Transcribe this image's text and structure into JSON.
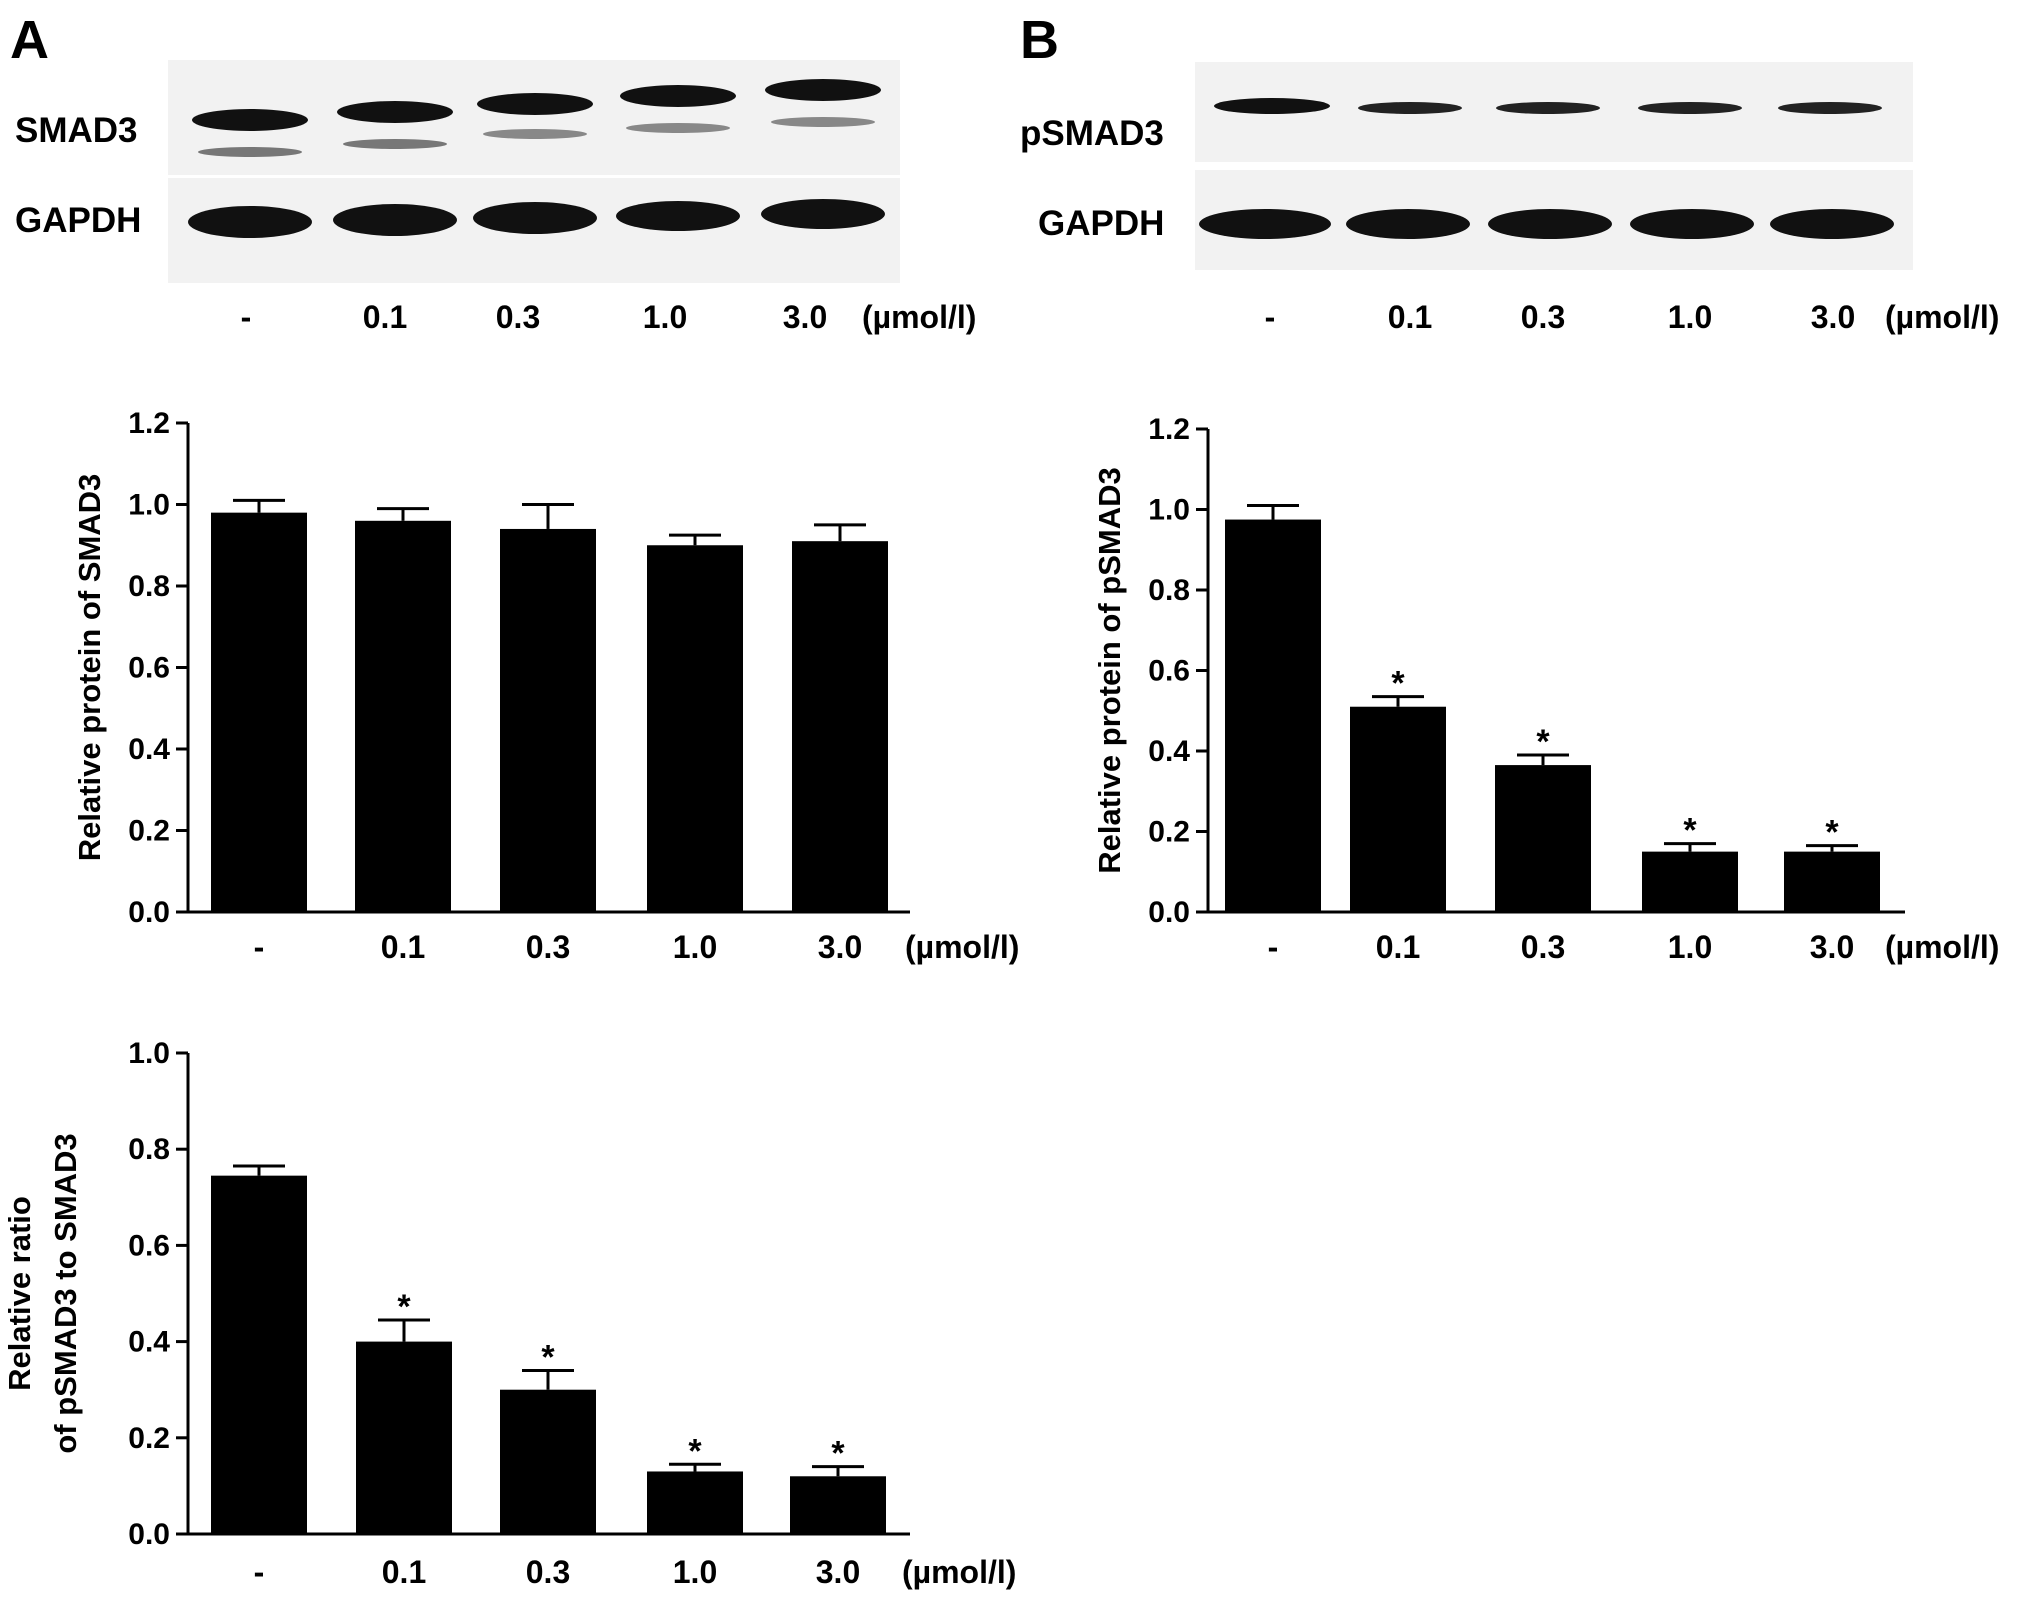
{
  "panels": {
    "A": {
      "letter": "A",
      "blot": {
        "row_labels": [
          "SMAD3",
          "GAPDH"
        ],
        "lane_labels": [
          "-",
          "0.1",
          "0.3",
          "1.0",
          "3.0"
        ],
        "unit": "(µmol/l)"
      }
    },
    "B": {
      "letter": "B",
      "blot": {
        "row_labels": [
          "pSMAD3",
          "GAPDH"
        ],
        "lane_labels": [
          "-",
          "0.1",
          "0.3",
          "1.0",
          "3.0"
        ],
        "unit": "(µmol/l)"
      }
    }
  },
  "colors": {
    "bar": "#000000",
    "axis": "#000000",
    "blot_background": "#f2f2f2",
    "band": "#111111"
  },
  "chart_data": [
    {
      "type": "bar",
      "categories": [
        "-",
        "0.1",
        "0.3",
        "1.0",
        "3.0"
      ],
      "unit_label": "(µmol/l)",
      "values": [
        0.98,
        0.96,
        0.94,
        0.9,
        0.91
      ],
      "errors": [
        0.03,
        0.03,
        0.06,
        0.025,
        0.04
      ],
      "significance": [
        "",
        "",
        "",
        "",
        ""
      ],
      "ylabel": "Relative protein of SMAD3",
      "ylim": [
        0,
        1.2
      ],
      "yticks": [
        "0.0",
        "0.2",
        "0.4",
        "0.6",
        "0.8",
        "1.0",
        "1.2"
      ],
      "grid": false
    },
    {
      "type": "bar",
      "categories": [
        "-",
        "0.1",
        "0.3",
        "1.0",
        "3.0"
      ],
      "unit_label": "(µmol/l)",
      "values": [
        0.975,
        0.51,
        0.365,
        0.15,
        0.15
      ],
      "errors": [
        0.035,
        0.025,
        0.025,
        0.02,
        0.015
      ],
      "significance": [
        "",
        "*",
        "*",
        "*",
        "*"
      ],
      "ylabel": "Relative protein of pSMAD3",
      "ylim": [
        0,
        1.2
      ],
      "yticks": [
        "0.0",
        "0.2",
        "0.4",
        "0.6",
        "0.8",
        "1.0",
        "1.2"
      ],
      "grid": false
    },
    {
      "type": "bar",
      "categories": [
        "-",
        "0.1",
        "0.3",
        "1.0",
        "3.0"
      ],
      "unit_label": "(µmol/l)",
      "values": [
        0.745,
        0.4,
        0.3,
        0.13,
        0.12
      ],
      "errors": [
        0.02,
        0.045,
        0.04,
        0.015,
        0.02
      ],
      "significance": [
        "",
        "*",
        "*",
        "*",
        "*"
      ],
      "ylabel_lines": [
        "Relative ratio",
        "of pSMAD3 to SMAD3"
      ],
      "ylim": [
        0,
        1.0
      ],
      "yticks": [
        "0.0",
        "0.2",
        "0.4",
        "0.6",
        "0.8",
        "1.0"
      ],
      "grid": false
    }
  ]
}
